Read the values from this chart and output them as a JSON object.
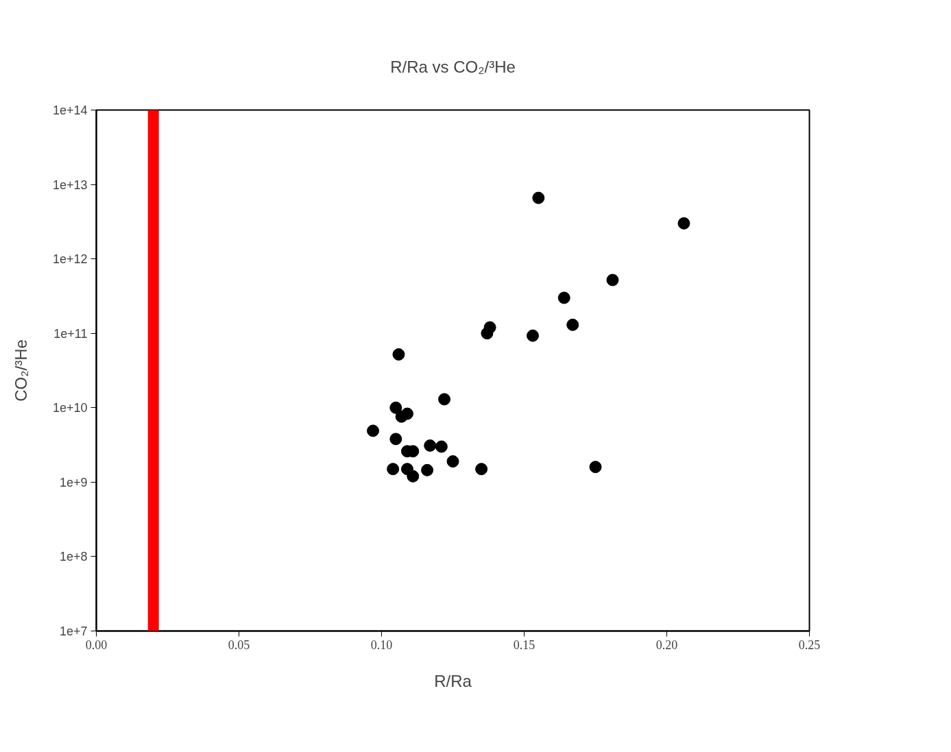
{
  "chart_data": {
    "type": "scatter",
    "title": "R/Ra vs CO₂/³He",
    "xlabel": "R/Ra",
    "ylabel": "CO₂/³He",
    "log": "y",
    "grid": false,
    "marker": "circle",
    "xlim": [
      0,
      0.25
    ],
    "ylim": [
      10000000.0,
      100000000000000.0
    ],
    "xticks": [
      {
        "value": 0,
        "label": "0.00"
      },
      {
        "value": 0.05,
        "label": "0.05"
      },
      {
        "value": 0.1,
        "label": "0.10"
      },
      {
        "value": 0.15,
        "label": "0.15"
      },
      {
        "value": 0.2,
        "label": "0.20"
      },
      {
        "value": 0.25,
        "label": "0.25"
      }
    ],
    "yticks": [
      {
        "value": 10000000.0,
        "label": "1e+7"
      },
      {
        "value": 100000000.0,
        "label": "1e+8"
      },
      {
        "value": 1000000000.0,
        "label": "1e+9"
      },
      {
        "value": 10000000000.0,
        "label": "1e+10"
      },
      {
        "value": 100000000000.0,
        "label": "1e+11"
      },
      {
        "value": 1000000000000.0,
        "label": "1e+12"
      },
      {
        "value": 10000000000000.0,
        "label": "1e+13"
      },
      {
        "value": 100000000000000.0,
        "label": "1e+14"
      }
    ],
    "ref_lines": [
      {
        "axis": "x",
        "value": 0.02,
        "color": "#ff0000"
      }
    ],
    "series": [
      {
        "color": "#000000",
        "x": [
          0.155,
          0.206,
          0.181,
          0.164,
          0.167,
          0.138,
          0.137,
          0.153,
          0.106,
          0.122,
          0.105,
          0.109,
          0.107,
          0.097,
          0.105,
          0.109,
          0.111,
          0.117,
          0.121,
          0.125,
          0.104,
          0.109,
          0.111,
          0.116,
          0.135,
          0.175
        ],
        "values": [
          6600000000000.0,
          3000000000000.0,
          520000000000.0,
          300000000000.0,
          130000000000.0,
          120000000000.0,
          100000000000.0,
          93000000000.0,
          52000000000.0,
          13000000000.0,
          10000000000.0,
          8300000000.0,
          7600000000.0,
          4900000000.0,
          3800000000.0,
          2600000000.0,
          2600000000.0,
          3100000000.0,
          3000000000.0,
          1900000000.0,
          1500000000.0,
          1500000000.0,
          1200000000.0,
          1450000000.0,
          1500000000.0,
          1600000000.0
        ]
      }
    ]
  }
}
